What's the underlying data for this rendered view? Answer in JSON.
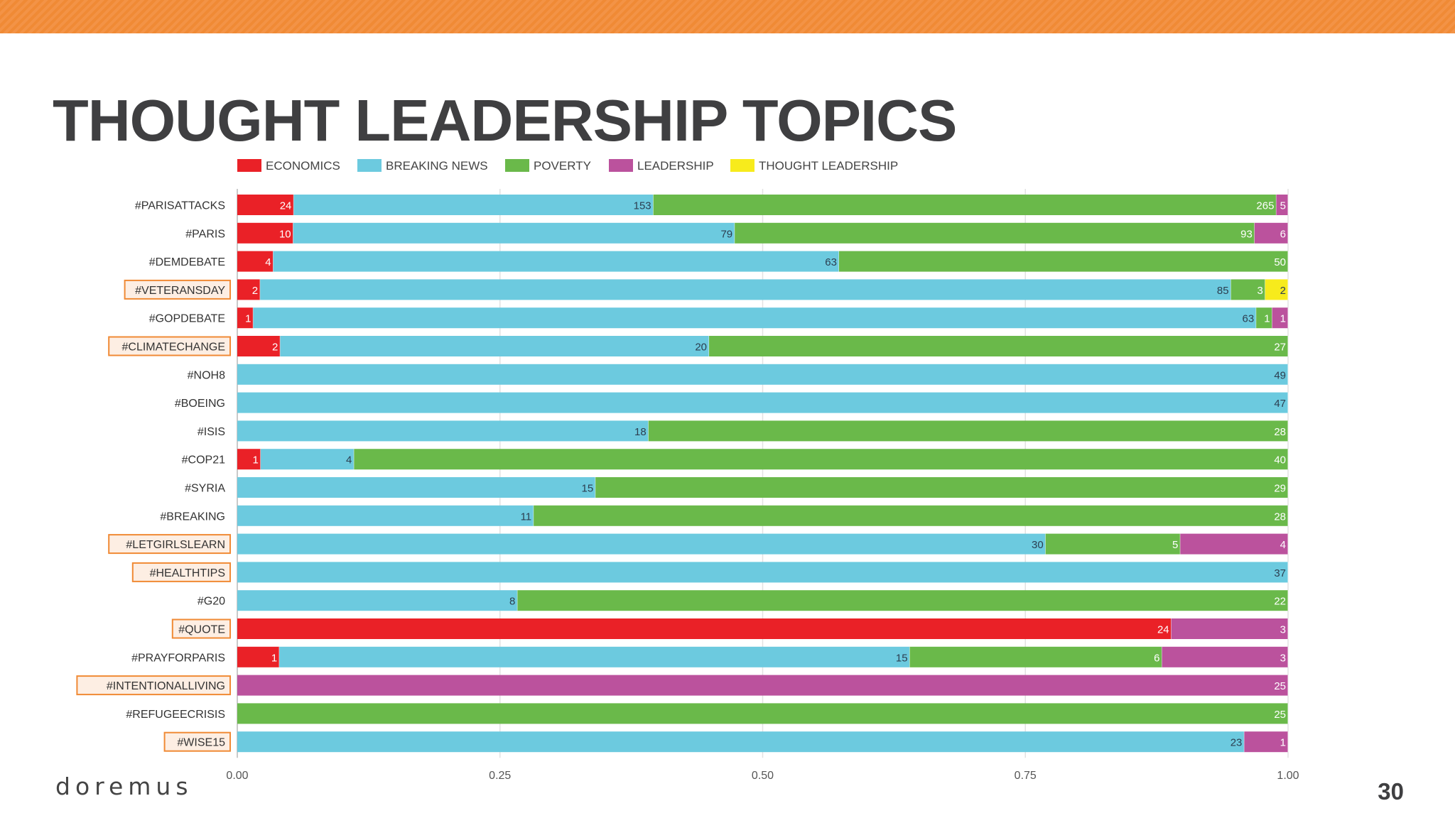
{
  "slide": {
    "title": "THOUGHT LEADERSHIP TOPICS",
    "brand": "doremus",
    "page_number": "30",
    "accent_color": "#f08a35"
  },
  "chart_data": {
    "type": "bar",
    "orientation": "horizontal",
    "stacked": "normalized",
    "xlim": [
      0,
      1
    ],
    "x_ticks": [
      "0.00",
      "0.25",
      "0.50",
      "0.75",
      "1.00"
    ],
    "grid": true,
    "legend_position": "top",
    "categories": [
      "#PARISATTACKS",
      "#PARIS",
      "#DEMDEBATE",
      "#VETERANSDAY",
      "#GOPDEBATE",
      "#CLIMATECHANGE",
      "#NOH8",
      "#BOEING",
      "#ISIS",
      "#COP21",
      "#SYRIA",
      "#BREAKING",
      "#LETGIRLSLEARN",
      "#HEALTHTIPS",
      "#G20",
      "#QUOTE",
      "#PRAYFORPARIS",
      "#INTENTIONALLIVING",
      "#REFUGEECRISIS",
      "#WISE15"
    ],
    "highlighted": [
      "#VETERANSDAY",
      "#CLIMATECHANGE",
      "#LETGIRLSLEARN",
      "#HEALTHTIPS",
      "#QUOTE",
      "#INTENTIONALLIVING",
      "#WISE15"
    ],
    "highlight_color": "#f08a35",
    "series": [
      {
        "name": "ECONOMICS",
        "color": "#ea2127",
        "values": [
          24,
          10,
          4,
          2,
          1,
          2,
          0,
          0,
          0,
          1,
          0,
          0,
          0,
          0,
          0,
          24,
          1,
          0,
          0,
          0
        ]
      },
      {
        "name": "BREAKING NEWS",
        "color": "#6ccadf",
        "values": [
          153,
          79,
          63,
          85,
          63,
          20,
          49,
          47,
          18,
          4,
          15,
          11,
          30,
          37,
          8,
          0,
          15,
          0,
          0,
          23
        ]
      },
      {
        "name": "POVERTY",
        "color": "#6ab94a",
        "values": [
          265,
          93,
          50,
          3,
          1,
          27,
          0,
          0,
          28,
          40,
          29,
          28,
          5,
          0,
          22,
          0,
          6,
          0,
          25,
          0
        ]
      },
      {
        "name": "LEADERSHIP",
        "color": "#bb529d",
        "values": [
          5,
          6,
          0,
          0,
          1,
          0,
          0,
          0,
          0,
          0,
          0,
          0,
          4,
          0,
          0,
          3,
          3,
          25,
          0,
          1
        ]
      },
      {
        "name": "THOUGHT LEADERSHIP",
        "color": "#f7eb1c",
        "values": [
          0,
          0,
          0,
          2,
          0,
          0,
          0,
          0,
          0,
          0,
          0,
          0,
          0,
          0,
          0,
          0,
          0,
          0,
          0,
          0
        ]
      }
    ]
  }
}
